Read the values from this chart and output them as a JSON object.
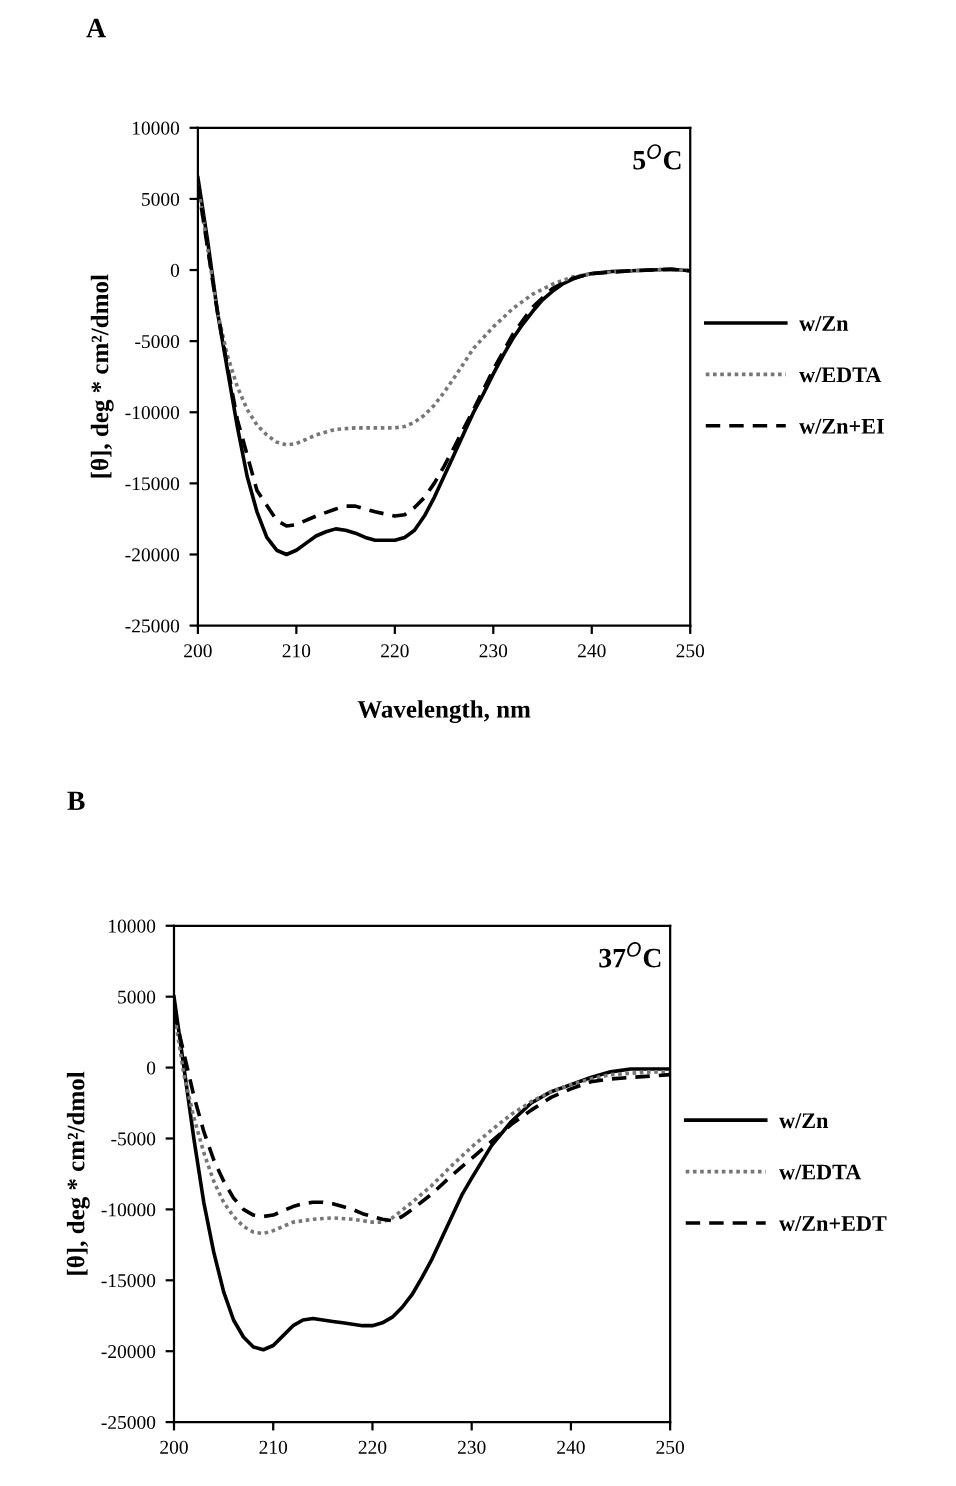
{
  "chart_data": [
    {
      "type": "line",
      "xlabel": "Wavelength, nm",
      "ylabel": "[θ], deg * cm²/dmol",
      "annotations": [
        "A",
        "5$^{O}$C"
      ],
      "xlim": [
        200,
        250
      ],
      "xticks": [
        200,
        210,
        220,
        230,
        240,
        250
      ],
      "ylim": [
        -25000,
        10000
      ],
      "yticks": [
        -25000,
        -20000,
        -15000,
        -10000,
        -5000,
        0,
        5000,
        10000
      ],
      "legend": "right",
      "grid": false,
      "x": [
        200,
        201,
        202,
        203,
        204,
        205,
        206,
        207,
        208,
        209,
        210,
        211,
        212,
        213,
        214,
        215,
        216,
        217,
        218,
        219,
        220,
        221,
        222,
        223,
        224,
        225,
        226,
        227,
        228,
        229,
        230,
        231,
        232,
        233,
        234,
        235,
        236,
        237,
        238,
        239,
        240,
        242,
        244,
        246,
        248,
        250
      ],
      "series": [
        {
          "name": "w/Zn",
          "color": "#000000",
          "line_style": "solid",
          "values": [
            6500,
            2000,
            -3000,
            -7000,
            -11000,
            -14500,
            -17000,
            -18800,
            -19700,
            -20000,
            -19700,
            -19200,
            -18700,
            -18400,
            -18200,
            -18300,
            -18500,
            -18800,
            -19000,
            -19000,
            -19000,
            -18800,
            -18300,
            -17300,
            -16000,
            -14500,
            -13000,
            -11500,
            -10000,
            -8700,
            -7300,
            -6000,
            -4800,
            -3800,
            -2900,
            -2100,
            -1500,
            -1000,
            -650,
            -400,
            -250,
            -100,
            -50,
            0,
            50,
            -50
          ]
        },
        {
          "name": "w/EDTA",
          "color": "#777777",
          "line_style": "dotted",
          "x": [
            200,
            202,
            203,
            204,
            205,
            206,
            207,
            208,
            209,
            210,
            211,
            212,
            214,
            216,
            218,
            220,
            221,
            222,
            223,
            224,
            225,
            226,
            228,
            230,
            232,
            234,
            236,
            238,
            240,
            244,
            248,
            250
          ],
          "values": [
            6000,
            -3000,
            -6000,
            -8200,
            -9800,
            -10900,
            -11600,
            -12100,
            -12300,
            -12200,
            -11900,
            -11600,
            -11200,
            -11100,
            -11100,
            -11100,
            -11000,
            -10700,
            -10200,
            -9500,
            -8600,
            -7600,
            -5500,
            -4000,
            -2700,
            -1700,
            -1000,
            -500,
            -250,
            -50,
            50,
            -50
          ]
        },
        {
          "name": "w/Zn+EI",
          "color": "#000000",
          "line_style": "dashed",
          "x": [
            200,
            202,
            204,
            206,
            208,
            209,
            210,
            212,
            214,
            215,
            216,
            218,
            220,
            221,
            222,
            223,
            224,
            225,
            226,
            228,
            230,
            232,
            234,
            236,
            238,
            240,
            244,
            248,
            250
          ],
          "values": [
            6000,
            -3000,
            -10500,
            -15500,
            -17600,
            -18000,
            -17900,
            -17300,
            -16800,
            -16600,
            -16600,
            -17000,
            -17300,
            -17200,
            -16700,
            -16000,
            -15000,
            -13800,
            -12500,
            -9800,
            -7000,
            -4500,
            -2600,
            -1300,
            -600,
            -250,
            -50,
            50,
            -50
          ]
        }
      ]
    },
    {
      "type": "line",
      "ylabel": "[θ], deg * cm²/dmol",
      "annotations": [
        "B",
        "37$^{O}$C"
      ],
      "xlim": [
        200,
        250
      ],
      "xticks": [
        200,
        210,
        220,
        230,
        240,
        250
      ],
      "ylim": [
        -25000,
        10000
      ],
      "yticks": [
        -25000,
        -20000,
        -15000,
        -10000,
        -5000,
        0,
        5000,
        10000
      ],
      "legend": "right",
      "grid": false,
      "x": [
        200,
        201,
        202,
        203,
        204,
        205,
        206,
        207,
        208,
        209,
        210,
        211,
        212,
        213,
        214,
        215,
        216,
        217,
        218,
        219,
        220,
        221,
        222,
        223,
        224,
        225,
        226,
        227,
        228,
        229,
        230,
        232,
        234,
        236,
        238,
        240,
        242,
        244,
        246,
        248,
        250
      ],
      "series": [
        {
          "name": "w/Zn",
          "color": "#000000",
          "line_style": "solid",
          "values": [
            5000,
            0,
            -5000,
            -9500,
            -13000,
            -15800,
            -17800,
            -19000,
            -19700,
            -19900,
            -19600,
            -18900,
            -18200,
            -17800,
            -17700,
            -17800,
            -17900,
            -18000,
            -18100,
            -18200,
            -18200,
            -18000,
            -17600,
            -16900,
            -16000,
            -14800,
            -13500,
            -12000,
            -10500,
            -9000,
            -7800,
            -5500,
            -3800,
            -2500,
            -1700,
            -1200,
            -700,
            -300,
            -100,
            -100,
            -100
          ]
        },
        {
          "name": "w/EDTA",
          "color": "#777777",
          "line_style": "dotted",
          "x": [
            200,
            201,
            202,
            203,
            204,
            205,
            206,
            207,
            208,
            209,
            210,
            211,
            212,
            214,
            216,
            218,
            220,
            221,
            222,
            224,
            226,
            228,
            230,
            232,
            234,
            236,
            238,
            240,
            242,
            244,
            246,
            248,
            250
          ],
          "values": [
            4000,
            -500,
            -3500,
            -6000,
            -8000,
            -9500,
            -10500,
            -11200,
            -11600,
            -11700,
            -11500,
            -11200,
            -10900,
            -10700,
            -10600,
            -10700,
            -10900,
            -10900,
            -10600,
            -9500,
            -8300,
            -6900,
            -5600,
            -4400,
            -3300,
            -2400,
            -1700,
            -1200,
            -800,
            -500,
            -400,
            -300,
            -300
          ]
        },
        {
          "name": "w/Zn+EDT",
          "color": "#000000",
          "line_style": "dashed",
          "x": [
            200,
            201,
            202,
            203,
            204,
            205,
            206,
            207,
            208,
            209,
            210,
            211,
            212,
            213,
            214,
            215,
            216,
            217,
            218,
            219,
            220,
            221,
            222,
            223,
            224,
            226,
            228,
            230,
            232,
            234,
            236,
            238,
            240,
            242,
            244,
            246,
            248,
            250
          ],
          "values": [
            4000,
            1000,
            -2000,
            -4500,
            -6500,
            -8000,
            -9200,
            -10000,
            -10400,
            -10500,
            -10400,
            -10100,
            -9800,
            -9600,
            -9500,
            -9500,
            -9600,
            -9800,
            -10000,
            -10300,
            -10500,
            -10700,
            -10800,
            -10500,
            -10000,
            -8900,
            -7600,
            -6400,
            -5200,
            -4000,
            -3000,
            -2100,
            -1500,
            -1000,
            -800,
            -700,
            -600,
            -500
          ]
        }
      ]
    }
  ]
}
